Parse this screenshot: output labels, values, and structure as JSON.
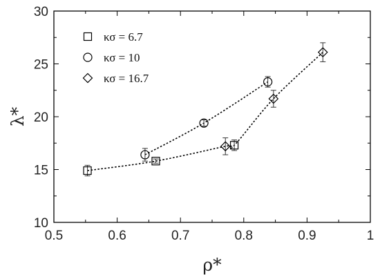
{
  "chart_data": {
    "type": "scatter",
    "xlabel": "ρ*",
    "ylabel": "λ*",
    "xlim": [
      0.5,
      1.0
    ],
    "ylim": [
      10,
      30
    ],
    "x_ticks": [
      "0.5",
      "0.6",
      "0.7",
      "0.8",
      "0.9",
      "1"
    ],
    "y_ticks": [
      "10",
      "15",
      "20",
      "25",
      "30"
    ],
    "grid": false,
    "legend_position": "top-left",
    "series": [
      {
        "name": "κσ = 6.7",
        "marker": "square",
        "x": [
          0.553,
          0.661,
          0.785
        ],
        "y": [
          14.9,
          15.8,
          17.3
        ],
        "yerr": [
          0.5,
          0.2,
          0.5
        ]
      },
      {
        "name": "κσ = 10",
        "marker": "circle",
        "x": [
          0.644,
          0.737,
          0.838
        ],
        "y": [
          16.4,
          19.4,
          23.3
        ],
        "yerr": [
          0.6,
          0.3,
          0.5
        ]
      },
      {
        "name": "κσ = 16.7",
        "marker": "diamond",
        "x": [
          0.771,
          0.847,
          0.925
        ],
        "y": [
          17.2,
          21.7,
          26.1
        ],
        "yerr": [
          0.8,
          0.8,
          0.9
        ]
      }
    ],
    "fit_curves": [
      {
        "x": [
          0.553,
          0.661,
          0.771,
          0.785,
          0.847,
          0.925
        ],
        "y": [
          14.9,
          15.8,
          17.2,
          17.3,
          21.7,
          26.1
        ]
      },
      {
        "x": [
          0.644,
          0.737,
          0.838
        ],
        "y": [
          16.4,
          19.4,
          23.3
        ]
      }
    ]
  }
}
